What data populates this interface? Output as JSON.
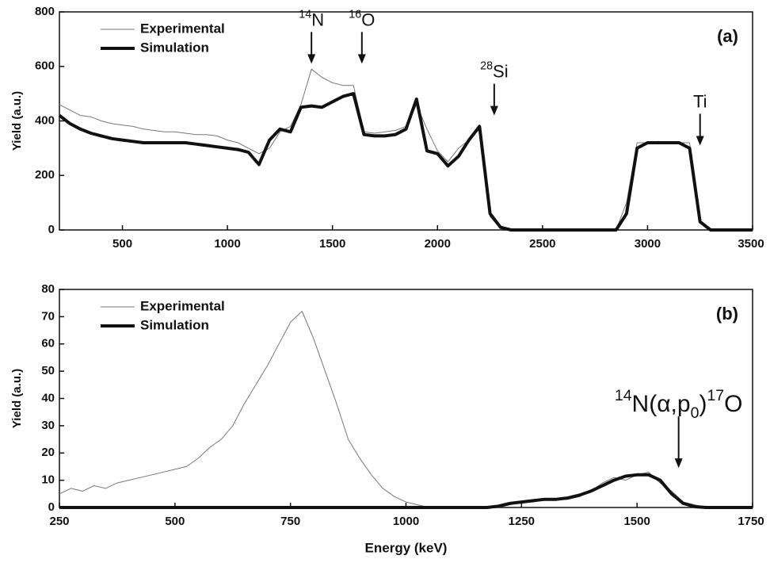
{
  "chart_data": [
    {
      "type": "line",
      "panel_label": "(a)",
      "y_label": "Yield (a.u.)",
      "legend": "upper left",
      "xlim": [
        200,
        3500
      ],
      "ylim": [
        0,
        800
      ],
      "xticks": [
        500,
        1000,
        1500,
        2000,
        2500,
        3000,
        3500
      ],
      "yticks": [
        0,
        200,
        400,
        600,
        800
      ],
      "x": [
        200,
        250,
        300,
        350,
        400,
        450,
        500,
        550,
        600,
        650,
        700,
        750,
        800,
        850,
        900,
        950,
        1000,
        1050,
        1100,
        1150,
        1200,
        1250,
        1300,
        1350,
        1400,
        1450,
        1500,
        1550,
        1600,
        1650,
        1700,
        1750,
        1800,
        1850,
        1900,
        1950,
        2000,
        2050,
        2100,
        2150,
        2200,
        2250,
        2300,
        2350,
        2400,
        2450,
        2500,
        2550,
        2600,
        2650,
        2700,
        2750,
        2800,
        2850,
        2900,
        2950,
        3000,
        3050,
        3100,
        3150,
        3200,
        3250,
        3300,
        3350,
        3400,
        3450,
        3500
      ],
      "series": [
        {
          "name": "Experimental",
          "color": "#777777",
          "width": 1,
          "values": [
            460,
            440,
            420,
            415,
            400,
            390,
            385,
            380,
            370,
            365,
            360,
            360,
            355,
            350,
            350,
            345,
            330,
            320,
            300,
            280,
            300,
            360,
            380,
            460,
            590,
            560,
            540,
            530,
            530,
            360,
            355,
            360,
            365,
            380,
            460,
            370,
            290,
            250,
            300,
            330,
            370,
            50,
            5,
            0,
            0,
            0,
            0,
            0,
            0,
            0,
            0,
            0,
            0,
            0,
            100,
            320,
            320,
            325,
            320,
            320,
            320,
            30,
            0,
            0,
            0,
            0,
            0
          ]
        },
        {
          "name": "Simulation",
          "color": "#111111",
          "width": 4,
          "values": [
            420,
            390,
            370,
            355,
            345,
            335,
            330,
            325,
            320,
            320,
            320,
            320,
            320,
            315,
            310,
            305,
            300,
            295,
            285,
            240,
            330,
            370,
            360,
            450,
            455,
            450,
            470,
            490,
            500,
            350,
            345,
            345,
            350,
            370,
            480,
            290,
            280,
            235,
            270,
            330,
            380,
            60,
            10,
            0,
            0,
            0,
            0,
            0,
            0,
            0,
            0,
            0,
            0,
            0,
            60,
            300,
            320,
            320,
            320,
            320,
            300,
            30,
            0,
            0,
            0,
            0,
            0
          ]
        }
      ],
      "annotations": [
        {
          "parts": [
            {
              "text": "14",
              "sup": true
            },
            {
              "text": "N"
            }
          ],
          "x": 1400,
          "y": 610
        },
        {
          "parts": [
            {
              "text": "16",
              "sup": true
            },
            {
              "text": "O"
            }
          ],
          "x": 1640,
          "y": 610
        },
        {
          "parts": [
            {
              "text": "28",
              "sup": true
            },
            {
              "text": "Si"
            }
          ],
          "x": 2270,
          "y": 420
        },
        {
          "parts": [
            {
              "text": "Ti"
            }
          ],
          "x": 3250,
          "y": 310
        }
      ]
    },
    {
      "type": "line",
      "panel_label": "(b)",
      "y_label": "Yield (a.u.)",
      "x_label": "Energy (keV)",
      "legend": "upper left",
      "xlim": [
        250,
        1750
      ],
      "ylim": [
        0,
        80
      ],
      "xticks": [
        250,
        500,
        750,
        1000,
        1250,
        1500,
        1750
      ],
      "yticks": [
        0,
        10,
        20,
        30,
        40,
        50,
        60,
        70,
        80
      ],
      "x": [
        250,
        275,
        300,
        325,
        350,
        375,
        400,
        425,
        450,
        475,
        500,
        525,
        550,
        575,
        600,
        625,
        650,
        675,
        700,
        725,
        750,
        775,
        800,
        825,
        850,
        875,
        900,
        925,
        950,
        975,
        1000,
        1025,
        1050,
        1075,
        1100,
        1125,
        1150,
        1175,
        1200,
        1225,
        1250,
        1275,
        1300,
        1325,
        1350,
        1375,
        1400,
        1425,
        1450,
        1475,
        1500,
        1525,
        1550,
        1575,
        1600,
        1625,
        1650,
        1675,
        1700,
        1725,
        1750
      ],
      "series": [
        {
          "name": "Experimental",
          "color": "#777777",
          "width": 1,
          "values": [
            5,
            7,
            6,
            8,
            7,
            9,
            10,
            11,
            12,
            13,
            14,
            15,
            18,
            22,
            25,
            30,
            38,
            45,
            52,
            60,
            68,
            72,
            62,
            50,
            38,
            25,
            18,
            12,
            7,
            4,
            2,
            1,
            0,
            0,
            0,
            0,
            0,
            0,
            0,
            1,
            2,
            2,
            3,
            3,
            3,
            4,
            6,
            9,
            11,
            10,
            12,
            13,
            9,
            6,
            2,
            1,
            0,
            0,
            0,
            0,
            0
          ]
        },
        {
          "name": "Simulation",
          "color": "#111111",
          "width": 4,
          "values": [
            0,
            0,
            0,
            0,
            0,
            0,
            0,
            0,
            0,
            0,
            0,
            0,
            0,
            0,
            0,
            0,
            0,
            0,
            0,
            0,
            0,
            0,
            0,
            0,
            0,
            0,
            0,
            0,
            0,
            0,
            0,
            0,
            0,
            0,
            0,
            0,
            0,
            0,
            0.5,
            1.5,
            2,
            2.5,
            3,
            3,
            3.5,
            4.5,
            6,
            8,
            10,
            11.5,
            12,
            12,
            10,
            5,
            1.5,
            0.3,
            0,
            0,
            0,
            0,
            0
          ]
        }
      ],
      "annotations": [
        {
          "parts": [
            {
              "text": "14",
              "sup": true
            },
            {
              "text": "N(α,p"
            },
            {
              "text": "0",
              "sub": true
            },
            {
              "text": ")"
            },
            {
              "text": "17",
              "sup": true
            },
            {
              "text": "O"
            }
          ],
          "x": 1590,
          "y": 14.5
        }
      ]
    }
  ]
}
